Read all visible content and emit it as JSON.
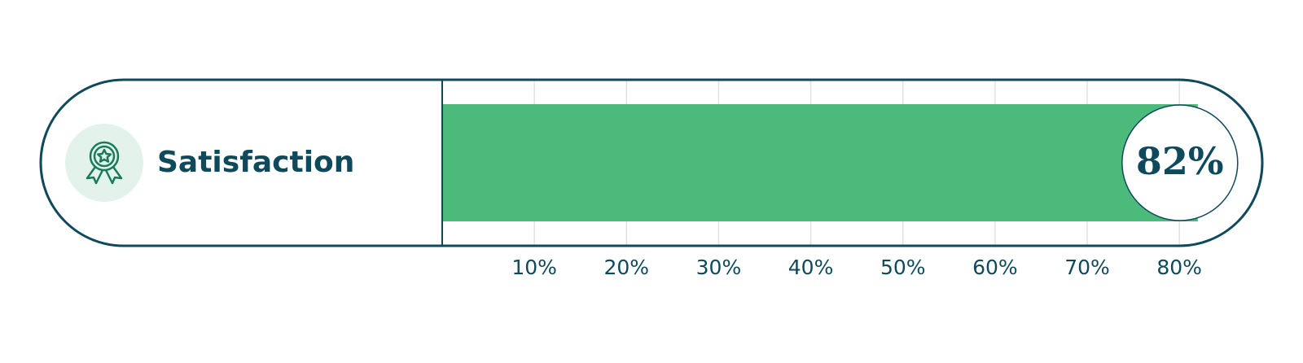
{
  "chart_data": {
    "type": "bar",
    "categories": [
      "Satisfaction"
    ],
    "values": [
      82
    ],
    "value_labels": [
      "82%"
    ],
    "color": "#4cba7b",
    "xlim": [
      0,
      89
    ],
    "xticks": [
      {
        "value": 10,
        "label": "10%"
      },
      {
        "value": 20,
        "label": "20%"
      },
      {
        "value": 30,
        "label": "30%"
      },
      {
        "value": 40,
        "label": "40%"
      },
      {
        "value": 50,
        "label": "50%"
      },
      {
        "value": 60,
        "label": "60%"
      },
      {
        "value": 70,
        "label": "70%"
      },
      {
        "value": 80,
        "label": "80%"
      }
    ],
    "grid": true
  }
}
